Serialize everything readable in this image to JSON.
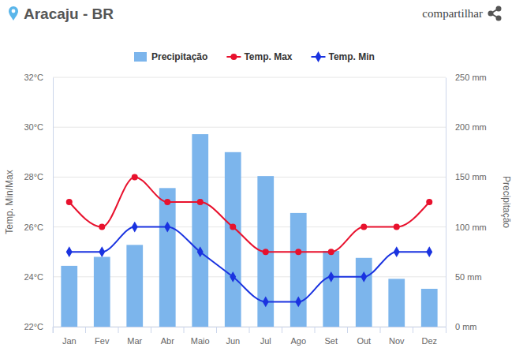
{
  "chart_data": {
    "type": "bar",
    "title": "Aracaju - BR",
    "share_label": "compartilhar",
    "categories": [
      "Jan",
      "Fev",
      "Mar",
      "Abr",
      "Maio",
      "Jun",
      "Jul",
      "Ago",
      "Set",
      "Out",
      "Nov",
      "Dez"
    ],
    "series": [
      {
        "name": "Precipitação",
        "type": "bar",
        "axis": "y2",
        "color": "#7cb5ec",
        "values": [
          61,
          70,
          82,
          139,
          193,
          175,
          151,
          114,
          76,
          69,
          48,
          38
        ]
      },
      {
        "name": "Temp. Max",
        "type": "line",
        "color": "#e8112d",
        "marker": "circle",
        "values": [
          27,
          26,
          28,
          27,
          27,
          26,
          25,
          25,
          25,
          26,
          26,
          27
        ]
      },
      {
        "name": "Temp. Min",
        "type": "line",
        "color": "#1a33e0",
        "marker": "diamond",
        "values": [
          25,
          25,
          26,
          26,
          25,
          24,
          23,
          23,
          24,
          24,
          25,
          25
        ]
      }
    ],
    "y_label": "Temp. Min/Max",
    "y2_label": "Precipitação",
    "ylim": [
      22,
      32
    ],
    "yticks": [
      {
        "value": 22,
        "label": "22°C"
      },
      {
        "value": 24,
        "label": "24°C"
      },
      {
        "value": 26,
        "label": "26°C"
      },
      {
        "value": 28,
        "label": "28°C"
      },
      {
        "value": 30,
        "label": "30°C"
      },
      {
        "value": 32,
        "label": "32°C"
      }
    ],
    "y2lim": [
      0,
      250
    ],
    "y2ticks": [
      {
        "value": 0,
        "label": "0 mm"
      },
      {
        "value": 50,
        "label": "50 mm"
      },
      {
        "value": 100,
        "label": "100 mm"
      },
      {
        "value": 150,
        "label": "150 mm"
      },
      {
        "value": 200,
        "label": "200 mm"
      },
      {
        "value": 250,
        "label": "250 mm"
      }
    ],
    "grid": true,
    "legend": "top"
  }
}
